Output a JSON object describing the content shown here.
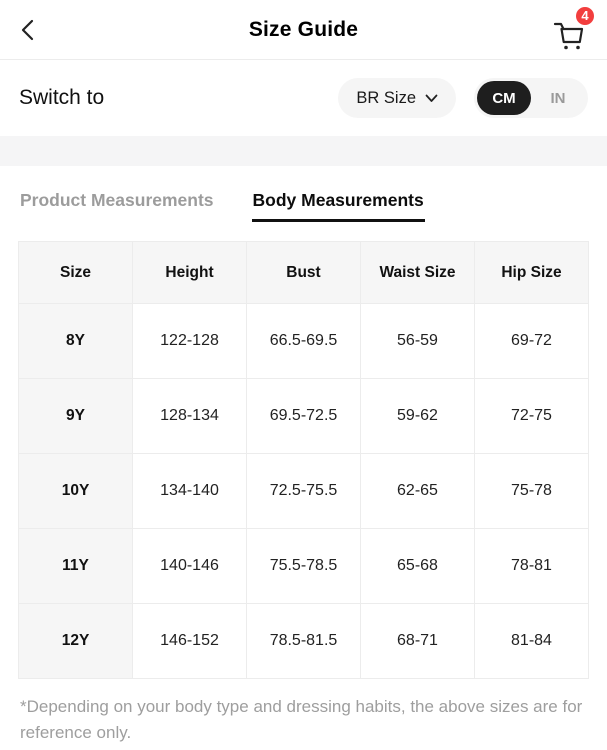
{
  "header": {
    "title": "Size Guide",
    "cart_badge": "4"
  },
  "switch_row": {
    "label": "Switch to",
    "size_standard": "BR Size",
    "units": [
      "CM",
      "IN"
    ],
    "selected_unit": "CM"
  },
  "tabs": [
    {
      "label": "Product Measurements",
      "active": false
    },
    {
      "label": "Body Measurements",
      "active": true
    }
  ],
  "table": {
    "columns": [
      "Size",
      "Height",
      "Bust",
      "Waist Size",
      "Hip Size"
    ],
    "rows": [
      [
        "8Y",
        "122-128",
        "66.5-69.5",
        "56-59",
        "69-72"
      ],
      [
        "9Y",
        "128-134",
        "69.5-72.5",
        "59-62",
        "72-75"
      ],
      [
        "10Y",
        "134-140",
        "72.5-75.5",
        "62-65",
        "75-78"
      ],
      [
        "11Y",
        "140-146",
        "75.5-78.5",
        "65-68",
        "78-81"
      ],
      [
        "12Y",
        "146-152",
        "78.5-81.5",
        "68-71",
        "81-84"
      ]
    ]
  },
  "footnote": "*Depending on your body type and dressing habits, the above sizes are for reference only.",
  "colors": {
    "badge_red": "#f23e3e",
    "toggle_dark": "#1e1e1e",
    "pill_gray": "#f5f5f5",
    "inactive_tab_gray": "#9c9c9c",
    "table_border": "#ececec",
    "footnote_gray": "#9e9e9e"
  }
}
